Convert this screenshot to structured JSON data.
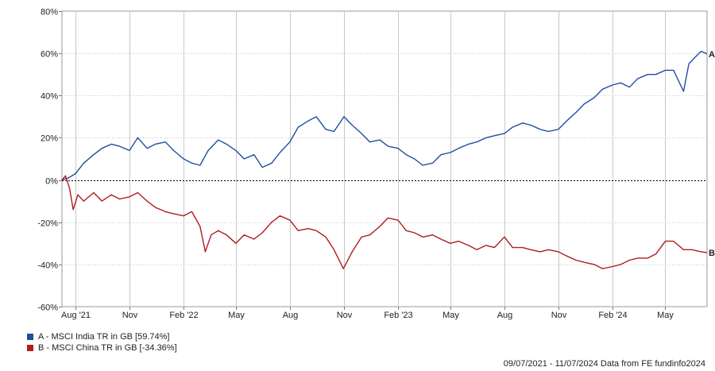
{
  "chart_data": {
    "type": "line",
    "x_start": "09/07/2021",
    "x_end": "11/07/2024",
    "ylim": [
      -60,
      80
    ],
    "y_ticks": [
      -60,
      -40,
      -20,
      0,
      20,
      40,
      60,
      80
    ],
    "y_tick_labels": [
      "-60%",
      "-40%",
      "-20%",
      "0%",
      "20%",
      "40%",
      "60%",
      "80%"
    ],
    "x_ticks": [
      {
        "date": "2021-08-01",
        "label": "Aug '21"
      },
      {
        "date": "2021-11-01",
        "label": "Nov"
      },
      {
        "date": "2022-02-01",
        "label": "Feb '22"
      },
      {
        "date": "2022-05-01",
        "label": "May"
      },
      {
        "date": "2022-08-01",
        "label": "Aug"
      },
      {
        "date": "2022-11-01",
        "label": "Nov"
      },
      {
        "date": "2023-02-01",
        "label": "Feb '23"
      },
      {
        "date": "2023-05-01",
        "label": "May"
      },
      {
        "date": "2023-08-01",
        "label": "Aug"
      },
      {
        "date": "2023-11-01",
        "label": "Nov"
      },
      {
        "date": "2024-02-01",
        "label": "Feb '24"
      },
      {
        "date": "2024-05-01",
        "label": "May"
      }
    ],
    "grid": true,
    "series": [
      {
        "name": "A - MSCI India TR in GB [59.74%]",
        "end_label": "A",
        "color": "#1f4ea0",
        "points": [
          [
            "2021-07-09",
            0
          ],
          [
            "2021-07-20",
            1
          ],
          [
            "2021-08-01",
            3
          ],
          [
            "2021-08-15",
            8
          ],
          [
            "2021-09-01",
            12
          ],
          [
            "2021-09-15",
            15
          ],
          [
            "2021-10-01",
            17
          ],
          [
            "2021-10-15",
            16
          ],
          [
            "2021-11-01",
            14
          ],
          [
            "2021-11-15",
            20
          ],
          [
            "2021-12-01",
            15
          ],
          [
            "2021-12-15",
            17
          ],
          [
            "2022-01-01",
            18
          ],
          [
            "2022-01-15",
            14
          ],
          [
            "2022-02-01",
            10
          ],
          [
            "2022-02-15",
            8
          ],
          [
            "2022-03-01",
            7
          ],
          [
            "2022-03-15",
            14
          ],
          [
            "2022-04-01",
            19
          ],
          [
            "2022-04-15",
            17
          ],
          [
            "2022-05-01",
            14
          ],
          [
            "2022-05-15",
            10
          ],
          [
            "2022-06-01",
            12
          ],
          [
            "2022-06-15",
            6
          ],
          [
            "2022-07-01",
            8
          ],
          [
            "2022-07-15",
            13
          ],
          [
            "2022-08-01",
            18
          ],
          [
            "2022-08-15",
            25
          ],
          [
            "2022-09-01",
            28
          ],
          [
            "2022-09-15",
            30
          ],
          [
            "2022-10-01",
            24
          ],
          [
            "2022-10-15",
            23
          ],
          [
            "2022-11-01",
            30
          ],
          [
            "2022-11-15",
            26
          ],
          [
            "2022-12-01",
            22
          ],
          [
            "2022-12-15",
            18
          ],
          [
            "2023-01-01",
            19
          ],
          [
            "2023-01-15",
            16
          ],
          [
            "2023-02-01",
            15
          ],
          [
            "2023-02-15",
            12
          ],
          [
            "2023-03-01",
            10
          ],
          [
            "2023-03-15",
            7
          ],
          [
            "2023-04-01",
            8
          ],
          [
            "2023-04-15",
            12
          ],
          [
            "2023-05-01",
            13
          ],
          [
            "2023-05-15",
            15
          ],
          [
            "2023-06-01",
            17
          ],
          [
            "2023-06-15",
            18
          ],
          [
            "2023-07-01",
            20
          ],
          [
            "2023-07-15",
            21
          ],
          [
            "2023-08-01",
            22
          ],
          [
            "2023-08-15",
            25
          ],
          [
            "2023-09-01",
            27
          ],
          [
            "2023-09-15",
            26
          ],
          [
            "2023-10-01",
            24
          ],
          [
            "2023-10-15",
            23
          ],
          [
            "2023-11-01",
            24
          ],
          [
            "2023-11-15",
            28
          ],
          [
            "2023-12-01",
            32
          ],
          [
            "2023-12-15",
            36
          ],
          [
            "2024-01-01",
            39
          ],
          [
            "2024-01-15",
            43
          ],
          [
            "2024-02-01",
            45
          ],
          [
            "2024-02-15",
            46
          ],
          [
            "2024-03-01",
            44
          ],
          [
            "2024-03-15",
            48
          ],
          [
            "2024-04-01",
            50
          ],
          [
            "2024-04-15",
            50
          ],
          [
            "2024-05-01",
            52
          ],
          [
            "2024-05-15",
            52
          ],
          [
            "2024-06-01",
            42
          ],
          [
            "2024-06-10",
            55
          ],
          [
            "2024-06-20",
            58
          ],
          [
            "2024-07-01",
            61
          ],
          [
            "2024-07-11",
            59.74
          ]
        ]
      },
      {
        "name": "B - MSCI China TR in GB [-34.36%]",
        "end_label": "B",
        "color": "#b01c1c",
        "points": [
          [
            "2021-07-09",
            0
          ],
          [
            "2021-07-15",
            2
          ],
          [
            "2021-07-22",
            -4
          ],
          [
            "2021-07-28",
            -14
          ],
          [
            "2021-08-05",
            -7
          ],
          [
            "2021-08-15",
            -10
          ],
          [
            "2021-09-01",
            -6
          ],
          [
            "2021-09-15",
            -10
          ],
          [
            "2021-10-01",
            -7
          ],
          [
            "2021-10-15",
            -9
          ],
          [
            "2021-11-01",
            -8
          ],
          [
            "2021-11-15",
            -6
          ],
          [
            "2021-12-01",
            -10
          ],
          [
            "2021-12-15",
            -13
          ],
          [
            "2022-01-01",
            -15
          ],
          [
            "2022-01-15",
            -16
          ],
          [
            "2022-02-01",
            -17
          ],
          [
            "2022-02-15",
            -15
          ],
          [
            "2022-03-01",
            -22
          ],
          [
            "2022-03-10",
            -34
          ],
          [
            "2022-03-20",
            -26
          ],
          [
            "2022-04-01",
            -24
          ],
          [
            "2022-04-15",
            -26
          ],
          [
            "2022-05-01",
            -30
          ],
          [
            "2022-05-15",
            -26
          ],
          [
            "2022-06-01",
            -28
          ],
          [
            "2022-06-15",
            -25
          ],
          [
            "2022-07-01",
            -20
          ],
          [
            "2022-07-15",
            -17
          ],
          [
            "2022-08-01",
            -19
          ],
          [
            "2022-08-15",
            -24
          ],
          [
            "2022-09-01",
            -23
          ],
          [
            "2022-09-15",
            -24
          ],
          [
            "2022-10-01",
            -27
          ],
          [
            "2022-10-15",
            -33
          ],
          [
            "2022-10-31",
            -42
          ],
          [
            "2022-11-15",
            -34
          ],
          [
            "2022-12-01",
            -27
          ],
          [
            "2022-12-15",
            -26
          ],
          [
            "2023-01-01",
            -22
          ],
          [
            "2023-01-15",
            -18
          ],
          [
            "2023-02-01",
            -19
          ],
          [
            "2023-02-15",
            -24
          ],
          [
            "2023-03-01",
            -25
          ],
          [
            "2023-03-15",
            -27
          ],
          [
            "2023-04-01",
            -26
          ],
          [
            "2023-04-15",
            -28
          ],
          [
            "2023-05-01",
            -30
          ],
          [
            "2023-05-15",
            -29
          ],
          [
            "2023-06-01",
            -31
          ],
          [
            "2023-06-15",
            -33
          ],
          [
            "2023-07-01",
            -31
          ],
          [
            "2023-07-15",
            -32
          ],
          [
            "2023-08-01",
            -27
          ],
          [
            "2023-08-15",
            -32
          ],
          [
            "2023-09-01",
            -32
          ],
          [
            "2023-09-15",
            -33
          ],
          [
            "2023-10-01",
            -34
          ],
          [
            "2023-10-15",
            -33
          ],
          [
            "2023-11-01",
            -34
          ],
          [
            "2023-11-15",
            -36
          ],
          [
            "2023-12-01",
            -38
          ],
          [
            "2023-12-15",
            -39
          ],
          [
            "2024-01-01",
            -40
          ],
          [
            "2024-01-15",
            -42
          ],
          [
            "2024-02-01",
            -41
          ],
          [
            "2024-02-15",
            -40
          ],
          [
            "2024-03-01",
            -38
          ],
          [
            "2024-03-15",
            -37
          ],
          [
            "2024-04-01",
            -37
          ],
          [
            "2024-04-15",
            -35
          ],
          [
            "2024-05-01",
            -29
          ],
          [
            "2024-05-15",
            -29
          ],
          [
            "2024-06-01",
            -33
          ],
          [
            "2024-06-15",
            -33
          ],
          [
            "2024-07-01",
            -34
          ],
          [
            "2024-07-11",
            -34.36
          ]
        ]
      }
    ]
  },
  "footer": {
    "text": "09/07/2021 - 11/07/2024 Data from FE fundinfo2024"
  }
}
